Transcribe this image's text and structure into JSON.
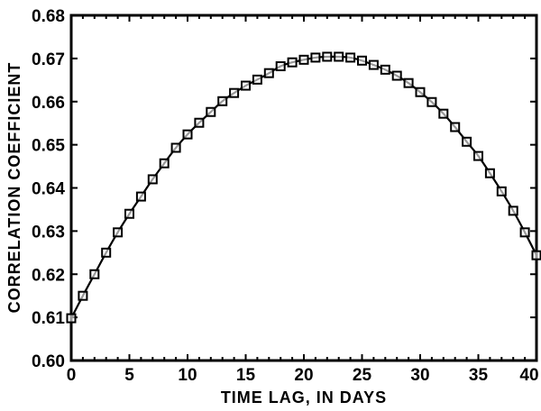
{
  "chart_data": {
    "type": "line",
    "title": "",
    "xlabel": "TIME LAG, IN DAYS",
    "ylabel": "CORRELATION COEFFICIENT",
    "xlim": [
      0,
      40
    ],
    "ylim": [
      0.6,
      0.68
    ],
    "x_ticks": [
      "0",
      "5",
      "10",
      "15",
      "20",
      "25",
      "30",
      "35",
      "40"
    ],
    "y_ticks": [
      "0.60",
      "0.61",
      "0.62",
      "0.63",
      "0.64",
      "0.65",
      "0.66",
      "0.67",
      "0.68"
    ],
    "x_minor_step": 1,
    "grid": false,
    "legend": null,
    "marker": "open-square",
    "line_color": "#000000",
    "series": [
      {
        "name": "correlation",
        "x": [
          0,
          1,
          2,
          3,
          4,
          5,
          6,
          7,
          8,
          9,
          10,
          11,
          12,
          13,
          14,
          15,
          16,
          17,
          18,
          19,
          20,
          21,
          22,
          23,
          24,
          25,
          26,
          27,
          28,
          29,
          30,
          31,
          32,
          33,
          34,
          35,
          36,
          37,
          38,
          39,
          40
        ],
        "values": [
          0.6098,
          0.615,
          0.62,
          0.625,
          0.6297,
          0.634,
          0.638,
          0.642,
          0.6457,
          0.6493,
          0.6524,
          0.6551,
          0.6576,
          0.6601,
          0.662,
          0.6637,
          0.6651,
          0.6666,
          0.6682,
          0.6691,
          0.6697,
          0.6702,
          0.6704,
          0.6704,
          0.6702,
          0.6695,
          0.6685,
          0.6674,
          0.666,
          0.6643,
          0.6622,
          0.6599,
          0.6572,
          0.6541,
          0.6507,
          0.6474,
          0.6434,
          0.6392,
          0.6347,
          0.6297,
          0.6244
        ]
      }
    ]
  }
}
